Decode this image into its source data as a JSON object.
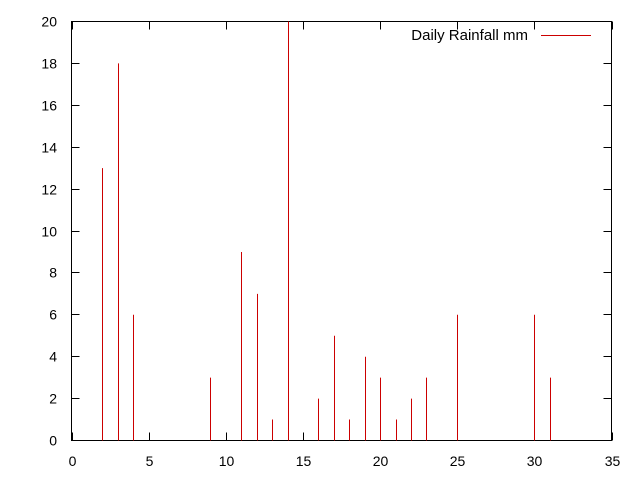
{
  "chart_data": {
    "type": "bar",
    "style": "impulses",
    "series": [
      {
        "name": "Daily Rainfall mm",
        "color": "#cc0000",
        "x": [
          2,
          3,
          4,
          9,
          11,
          12,
          13,
          14,
          16,
          17,
          18,
          19,
          20,
          21,
          22,
          23,
          25,
          30,
          31
        ],
        "values": [
          13,
          18,
          6,
          3,
          9,
          7,
          1,
          20,
          2,
          5,
          1,
          4,
          3,
          1,
          2,
          3,
          6,
          6,
          3
        ]
      }
    ],
    "title": "",
    "xlabel": "",
    "ylabel": "",
    "xlim": [
      0,
      35
    ],
    "ylim": [
      0,
      20
    ],
    "xticks": [
      0,
      5,
      10,
      15,
      20,
      25,
      30,
      35
    ],
    "yticks": [
      0,
      2,
      4,
      6,
      8,
      10,
      12,
      14,
      16,
      18,
      20
    ],
    "grid": false,
    "legend": {
      "position": "top-right",
      "entries": [
        "Daily Rainfall mm"
      ]
    }
  }
}
